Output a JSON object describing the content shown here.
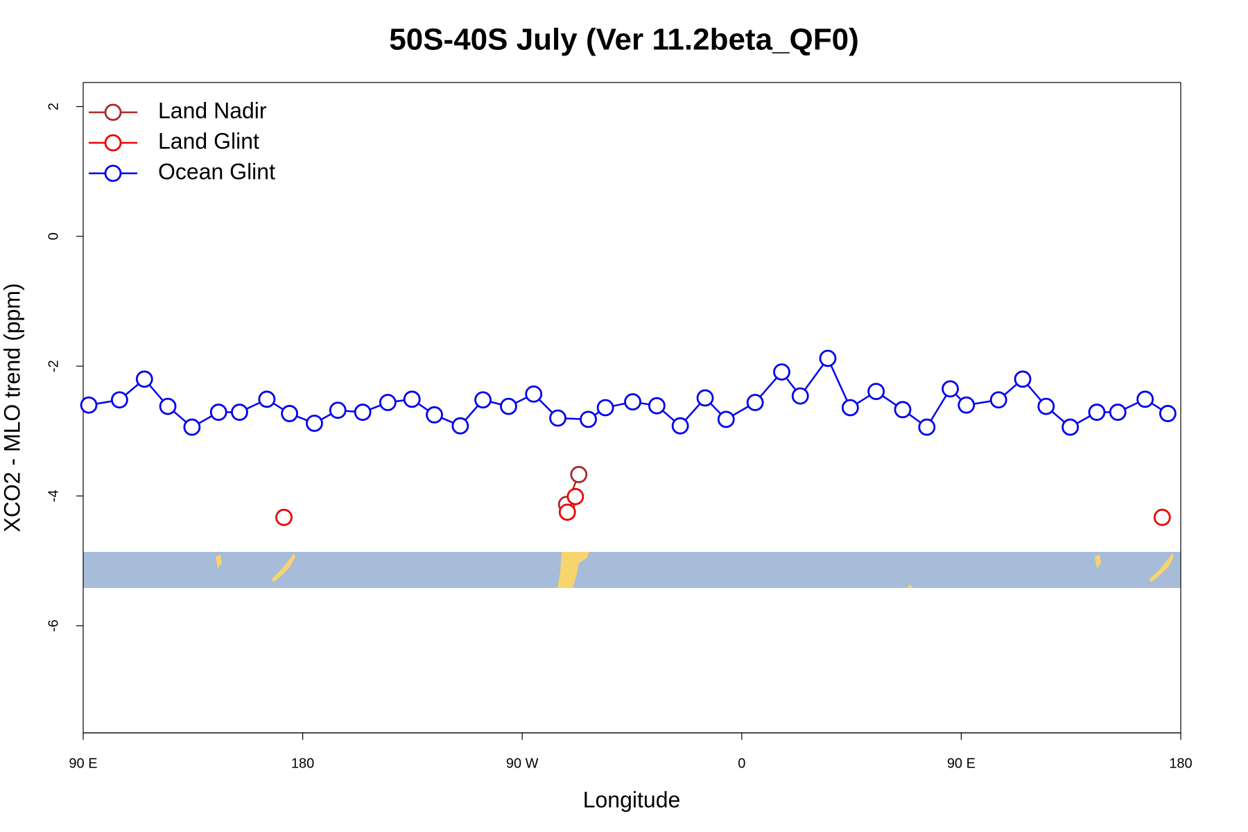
{
  "chart_data": {
    "type": "line",
    "title": "50S-40S July (Ver 11.2beta_QF0)",
    "x_label": "Longitude",
    "y_label": "XCO2 - MLO trend (ppm)",
    "xlim": [
      90,
      540
    ],
    "ylim": [
      -7.65,
      2.37
    ],
    "xticks": [
      {
        "value": 90,
        "label": "90 E"
      },
      {
        "value": 180,
        "label": "180"
      },
      {
        "value": 270,
        "label": "90 W"
      },
      {
        "value": 360,
        "label": "0"
      },
      {
        "value": 450,
        "label": "90 E"
      },
      {
        "value": 540,
        "label": "180"
      }
    ],
    "yticks": [
      2,
      0,
      -2,
      -4,
      -6
    ],
    "legend": "top-left",
    "series": [
      {
        "name": "Land Nadir",
        "color": "#a52a2a",
        "x": [
          288.2,
          293.2
        ],
        "values": [
          -4.13,
          -3.67
        ]
      },
      {
        "name": "Land Glint",
        "color": "#ee0000",
        "x": [
          172.3,
          null,
          288.5,
          291.8,
          null,
          532.4
        ],
        "values": [
          -4.33,
          null,
          -4.25,
          -4.01,
          null,
          -4.33
        ]
      },
      {
        "name": "Ocean Glint",
        "color": "#0000ee",
        "x": [
          92.3,
          104.9,
          115.1,
          124.7,
          134.6,
          145.5,
          154.1,
          165.3,
          174.6,
          184.8,
          194.4,
          204.6,
          214.9,
          224.8,
          234.0,
          244.6,
          253.9,
          264.4,
          274.7,
          284.6,
          297.1,
          304.1,
          315.3,
          325.2,
          334.8,
          345.0,
          353.6,
          365.5,
          376.4,
          384.0,
          395.3,
          404.5,
          415.1,
          426.0,
          435.9,
          445.5,
          452.1,
          465.3,
          475.2,
          484.8,
          494.7,
          505.6,
          514.2,
          525.4,
          534.7
        ],
        "values": [
          -2.6,
          -2.52,
          -2.2,
          -2.62,
          -2.94,
          -2.71,
          -2.71,
          -2.51,
          -2.73,
          -2.88,
          -2.68,
          -2.71,
          -2.56,
          -2.51,
          -2.75,
          -2.92,
          -2.52,
          -2.62,
          -2.43,
          -2.8,
          -2.82,
          -2.64,
          -2.55,
          -2.61,
          -2.92,
          -2.49,
          -2.82,
          -2.56,
          -2.09,
          -2.46,
          -1.88,
          -2.64,
          -2.39,
          -2.67,
          -2.94,
          -2.35,
          -2.6,
          -2.52,
          -2.2,
          -2.62,
          -2.94,
          -2.71,
          -2.71,
          -2.51,
          -2.73
        ]
      }
    ]
  }
}
